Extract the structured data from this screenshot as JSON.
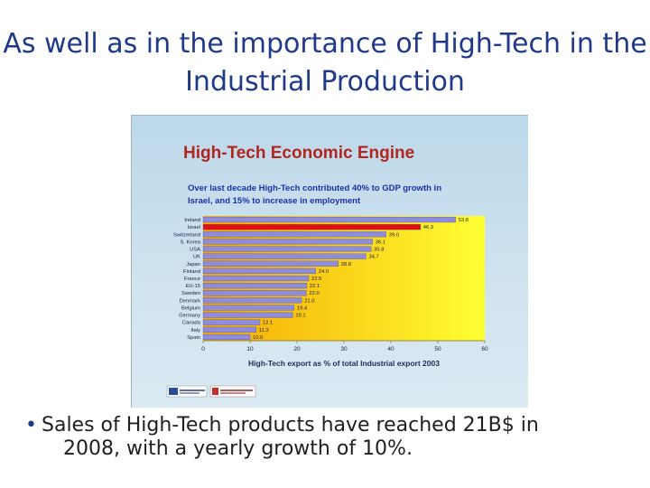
{
  "slide": {
    "title_line1": "As well as in the importance of High-Tech in the",
    "title_line2": "Industrial Production",
    "bullet_line1": "Sales of High-Tech products have reached 21B$ in",
    "bullet_line2": "2008, with a yearly growth of 10%."
  },
  "chart_data": {
    "type": "bar",
    "orientation": "horizontal",
    "title": "High-Tech Economic Engine",
    "subtitle_line1": "Over last decade High-Tech contributed 40% to GDP growth in",
    "subtitle_line2": "Israel, and 15% to increase in employment",
    "xlabel": "High-Tech export as % of total Industrial export 2003",
    "ylabel": "",
    "xlim": [
      0,
      60
    ],
    "xticks": [
      0,
      10,
      20,
      30,
      40,
      50,
      60
    ],
    "categories": [
      "Ireland",
      "Israel",
      "Switzerland",
      "S. Korea",
      "USA",
      "UK",
      "Japan",
      "Finland",
      "France",
      "EU-15",
      "Sweden",
      "Denmark",
      "Belgium",
      "Germany",
      "Canada",
      "Italy",
      "Spain"
    ],
    "values": [
      53.8,
      46.3,
      39.0,
      36.1,
      35.8,
      34.7,
      28.8,
      24.0,
      22.5,
      22.1,
      22.0,
      21.0,
      19.4,
      19.1,
      12.1,
      11.3,
      10.0
    ],
    "value_labels": [
      "53.8",
      "46.3",
      "39.0",
      "36.1",
      "35.8",
      "34.7",
      "28.8",
      "24.0",
      "22.5",
      "22.1",
      "22.0",
      "21.0",
      "19.4",
      "19.1",
      "12.1",
      "11.3",
      "10.0"
    ],
    "highlight_index": 1,
    "bar_color": "#8f8cd9",
    "highlight_color": "#e01010",
    "plot_background": [
      "#f5a800",
      "#ffff33"
    ],
    "title_color": "#b3261e",
    "subtitle_color": "#1c2fa8",
    "grid": false
  }
}
